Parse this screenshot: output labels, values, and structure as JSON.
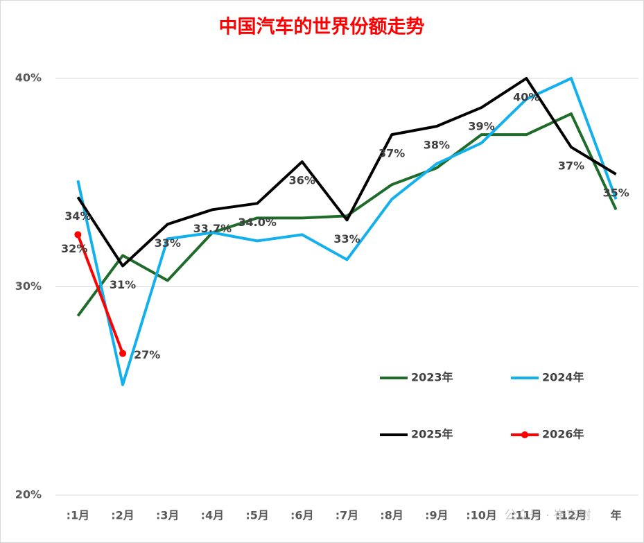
{
  "chart_data": {
    "type": "line",
    "title": "中国汽车的世界份额走势",
    "categories": [
      ":1月",
      ":2月",
      ":3月",
      ":4月",
      ":5月",
      ":6月",
      ":7月",
      ":8月",
      ":9月",
      ":10月",
      ":11月",
      ":12月",
      "年"
    ],
    "ylim": [
      20,
      40
    ],
    "yticks": [
      {
        "value": 20,
        "label": "20%"
      },
      {
        "value": 30,
        "label": "30%"
      },
      {
        "value": 40,
        "label": "40%"
      }
    ],
    "grid": true,
    "title_color": "#ff0000",
    "series": [
      {
        "name": "2023年",
        "color": "#1e6b2a",
        "values": [
          28.6,
          31.5,
          30.3,
          32.6,
          33.3,
          33.3,
          33.4,
          34.9,
          35.7,
          37.3,
          37.3,
          38.3,
          33.7
        ]
      },
      {
        "name": "2024年",
        "color": "#12b0ec",
        "values": [
          35.1,
          25.3,
          32.3,
          32.6,
          32.2,
          32.5,
          31.3,
          34.2,
          35.9,
          36.9,
          39.0,
          40.0,
          34.2
        ]
      },
      {
        "name": "2025年",
        "color": "#000000",
        "values": [
          34.3,
          31.0,
          33.0,
          33.7,
          34.0,
          36.0,
          33.2,
          37.3,
          37.7,
          38.6,
          40.0,
          36.7,
          35.4
        ],
        "value_labels": [
          "34%",
          "31%",
          "33%",
          "33.7%",
          "34.0%",
          "36%",
          "33%",
          "37%",
          "38%",
          "39%",
          "40%",
          "37%",
          "35%"
        ]
      },
      {
        "name": "2026年",
        "color": "#ff0000",
        "markers": true,
        "values": [
          32.5,
          26.8,
          null,
          null,
          null,
          null,
          null,
          null,
          null,
          null,
          null,
          null,
          null
        ],
        "value_labels": [
          "32%",
          "27%",
          null,
          null,
          null,
          null,
          null,
          null,
          null,
          null,
          null,
          null,
          null
        ]
      }
    ],
    "watermark": "公众号 · 崔东树"
  }
}
